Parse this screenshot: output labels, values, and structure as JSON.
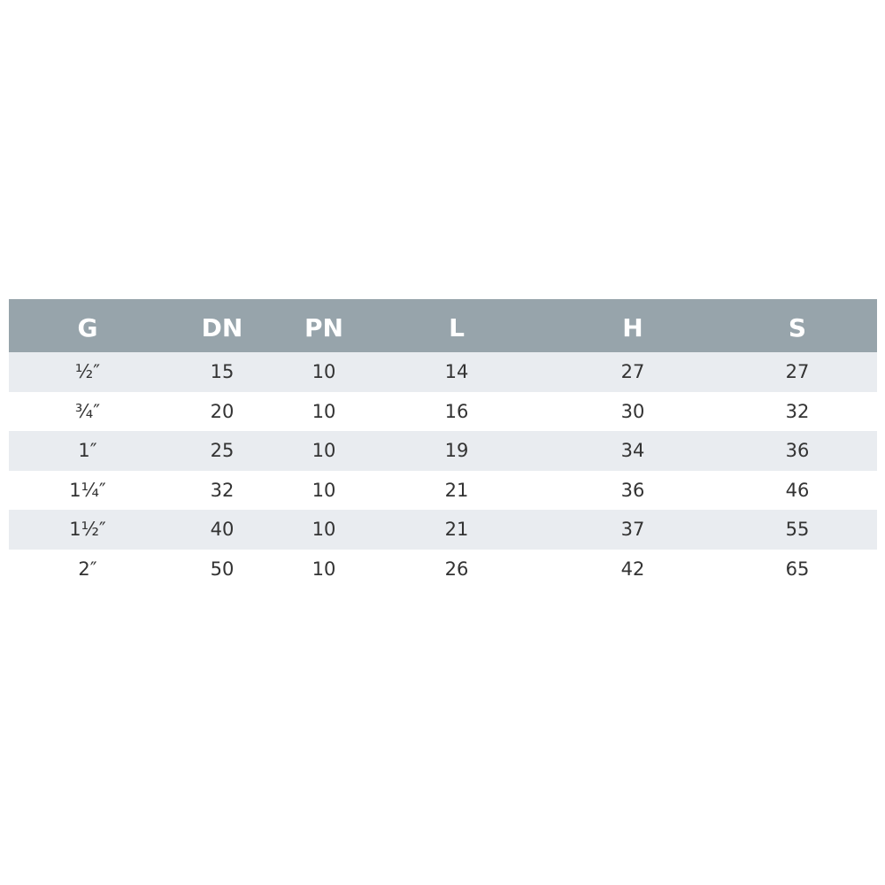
{
  "table": {
    "headers": [
      "G",
      "DN",
      "PN",
      "L",
      "H",
      "S"
    ],
    "rows": [
      [
        "½″",
        "15",
        "10",
        "14",
        "27",
        "27"
      ],
      [
        "¾″",
        "20",
        "10",
        "16",
        "30",
        "32"
      ],
      [
        "1″",
        "25",
        "10",
        "19",
        "34",
        "36"
      ],
      [
        "1¼″",
        "32",
        "10",
        "21",
        "36",
        "46"
      ],
      [
        "1½″",
        "40",
        "10",
        "21",
        "37",
        "55"
      ],
      [
        "2″",
        "50",
        "10",
        "26",
        "42",
        "65"
      ]
    ]
  },
  "colors": {
    "header_bg": "#97a4ab",
    "stripe_bg": "#e9ecf0",
    "text": "#333333"
  }
}
